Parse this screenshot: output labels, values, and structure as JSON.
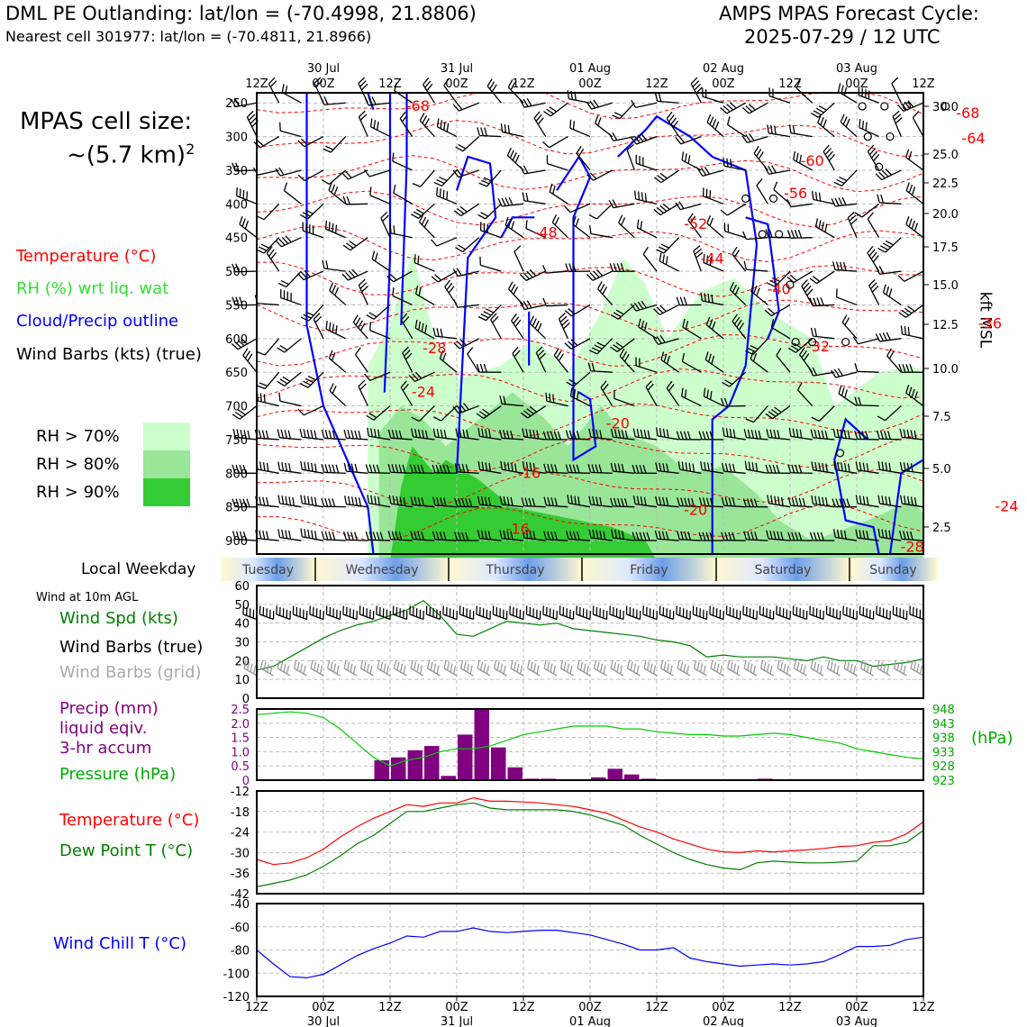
{
  "header": {
    "title_left": "DML PE Outlanding: lat/lon = (-70.4998, 21.8806)",
    "subtitle_left": "Nearest cell 301977: lat/lon = (-70.4811, 21.8966)",
    "title_right_1": "AMPS MPAS Forecast Cycle:",
    "title_right_2": "2025-07-29 / 12 UTC"
  },
  "side_text": {
    "cell_size_1": "MPAS cell size:",
    "cell_size_2": "~(5.7 km)",
    "cell_size_sup": "2",
    "legend_temperature": "Temperature (°C)",
    "legend_rh": "RH (%) wrt liq. wat",
    "legend_cloud": "Cloud/Precip outline",
    "legend_barbs": "Wind Barbs (kts) (true)",
    "rh70": "RH > 70%",
    "rh80": "RH > 80%",
    "rh90": "RH > 90%",
    "rh_colors": [
      "#ccffcc",
      "#99e699",
      "#33cc33"
    ],
    "local_weekday": "Local Weekday",
    "wind_10m": "Wind at 10m AGL",
    "wind_spd": "Wind Spd (kts)",
    "wind_barbs_true": "Wind Barbs (true)",
    "wind_barbs_grid": "Wind Barbs (grid)",
    "precip_1": "Precip (mm)",
    "precip_2": "liquid eqiv.",
    "precip_3": "3-hr accum",
    "pressure": "Pressure (hPa)",
    "hpa_unit": "(hPa)",
    "temperature": "Temperature (°C)",
    "dewpoint": "Dew Point T (°C)",
    "windchill": "Wind Chill T (°C)",
    "kft_msl": "kft MSL"
  },
  "time_axis": {
    "ticks_top": [
      "12Z",
      "00Z",
      "12Z",
      "00Z",
      "12Z",
      "00Z",
      "12Z",
      "00Z",
      "12Z",
      "00Z",
      "12Z"
    ],
    "dates": [
      "30 Jul",
      "31 Jul",
      "01 Aug",
      "02 Aug",
      "03 Aug"
    ],
    "ticks_bottom": [
      "12Z",
      "00Z",
      "12Z",
      "00Z",
      "12Z",
      "00Z",
      "12Z",
      "00Z",
      "12Z",
      "00Z",
      "12Z"
    ]
  },
  "weekdays": [
    "Tuesday",
    "Wednesday",
    "Thursday",
    "Friday",
    "Saturday",
    "Sunday"
  ],
  "chart_data": [
    {
      "type": "heatmap",
      "name": "time-height cross section",
      "pressure_ticks": [
        "250",
        "300",
        "350",
        "400",
        "450",
        "500",
        "550",
        "600",
        "650",
        "700",
        "750",
        "800",
        "850",
        "900"
      ],
      "height_ticks_kft": [
        "30.0",
        "25.0",
        "22.5",
        "20.0",
        "17.5",
        "15.0",
        "12.5",
        "10.0",
        "7.5",
        "5.0",
        "2.5"
      ],
      "temperature_labels": [
        {
          "text": "-68",
          "t": 29,
          "p": 255
        },
        {
          "text": "-68",
          "t": 128,
          "p": 266
        },
        {
          "text": "-64",
          "t": 129,
          "p": 303
        },
        {
          "text": "-60",
          "t": 100,
          "p": 337
        },
        {
          "text": "-56",
          "t": 97,
          "p": 385
        },
        {
          "text": "-52",
          "t": 79,
          "p": 430
        },
        {
          "text": "-48",
          "t": 52,
          "p": 443
        },
        {
          "text": "-44",
          "t": 82,
          "p": 482
        },
        {
          "text": "-40",
          "t": 94,
          "p": 527
        },
        {
          "text": "-36",
          "t": 132,
          "p": 578
        },
        {
          "text": "-32",
          "t": 101,
          "p": 612
        },
        {
          "text": "-28",
          "t": 32,
          "p": 615
        },
        {
          "text": "-24",
          "t": 30,
          "p": 680
        },
        {
          "text": "-20",
          "t": 65,
          "p": 727
        },
        {
          "text": "-16",
          "t": 49,
          "p": 800
        },
        {
          "text": "-20",
          "t": 79,
          "p": 855
        },
        {
          "text": "-16",
          "t": 47,
          "p": 883
        },
        {
          "text": "-24",
          "t": 135,
          "p": 850
        },
        {
          "text": "-28",
          "t": 118,
          "p": 910
        }
      ]
    },
    {
      "type": "line",
      "name": "wind speed 10m",
      "ylabel": "",
      "ylim": [
        0,
        60
      ],
      "yticks": [
        "60",
        "50",
        "40",
        "30",
        "20",
        "10",
        "0"
      ],
      "x_hours": [
        0,
        3,
        6,
        9,
        12,
        15,
        18,
        21,
        24,
        27,
        30,
        33,
        36,
        39,
        42,
        45,
        48,
        51,
        54,
        57,
        60,
        63,
        66,
        69,
        72,
        75,
        78,
        81,
        84,
        87,
        90,
        93,
        96,
        99,
        102,
        105,
        108,
        111,
        114,
        117,
        120
      ],
      "series": [
        {
          "color": "#008000",
          "values": [
            15,
            17,
            22,
            27,
            32,
            36,
            39,
            41,
            44,
            47,
            52,
            44,
            34,
            33,
            37,
            41,
            40,
            39,
            40,
            37,
            36,
            35,
            34,
            33,
            31,
            30,
            28,
            22,
            23,
            22,
            22,
            22,
            21,
            20,
            22,
            20,
            20,
            17,
            18,
            19,
            21
          ]
        }
      ]
    },
    {
      "type": "bar",
      "name": "precip and pressure",
      "ylim": [
        0,
        2.5
      ],
      "yticks": [
        "2.5",
        "2.0",
        "1.5",
        "1.0",
        "0.5",
        "0"
      ],
      "pressure_ticks": [
        "948",
        "943",
        "938",
        "933",
        "928",
        "923"
      ],
      "pressure_lim": [
        923,
        948
      ],
      "bar_hours": [
        21,
        24,
        27,
        30,
        33,
        36,
        39,
        42,
        45,
        48,
        51,
        54,
        57,
        60,
        63,
        66,
        69,
        72,
        75,
        78,
        81,
        84,
        87,
        90,
        93,
        96,
        99,
        102,
        105,
        108,
        111,
        114,
        117
      ],
      "bar_values": [
        0.7,
        0.8,
        1.05,
        1.2,
        0.15,
        1.6,
        2.5,
        1.15,
        0.45,
        0.05,
        0.05,
        0,
        0,
        0.1,
        0.4,
        0.2,
        0.05,
        0,
        0,
        0,
        0,
        0,
        0,
        0.05,
        0,
        0,
        0,
        0,
        0,
        0,
        0,
        0,
        0
      ],
      "series": [
        {
          "color": "#00cc00",
          "values": [
            946,
            946.5,
            947,
            946.5,
            945,
            941,
            936,
            931,
            928,
            930,
            931,
            933,
            934,
            934,
            935,
            937,
            939,
            940,
            941,
            942,
            942,
            942,
            941,
            941,
            940,
            939.5,
            939,
            939,
            938.5,
            938.5,
            939,
            939.5,
            939,
            938,
            937,
            936,
            934,
            933,
            932,
            931,
            930.5
          ]
        }
      ]
    },
    {
      "type": "line",
      "name": "temperature dew point",
      "ylim": [
        -42,
        -12
      ],
      "yticks": [
        "-12",
        "-18",
        "-24",
        "-30",
        "-36",
        "-42"
      ],
      "series": [
        {
          "color": "#ff0000",
          "values": [
            -32,
            -33.5,
            -33,
            -31.5,
            -29,
            -25.5,
            -22.5,
            -20,
            -18,
            -16,
            -16.5,
            -15.5,
            -15.5,
            -14,
            -15,
            -15,
            -15.2,
            -15.5,
            -16,
            -16.5,
            -17.5,
            -18.5,
            -20.5,
            -22.5,
            -24,
            -26,
            -27.5,
            -29,
            -29.8,
            -30,
            -29.5,
            -29.8,
            -29.5,
            -29.2,
            -28.8,
            -28.2,
            -28,
            -27,
            -26.5,
            -24.5,
            -21
          ]
        },
        {
          "color": "#008000",
          "values": [
            -40,
            -39,
            -38,
            -36.5,
            -34,
            -31,
            -27.5,
            -25,
            -21.5,
            -18,
            -18,
            -17,
            -16,
            -15.5,
            -17,
            -17.5,
            -17.5,
            -17.5,
            -17.5,
            -18,
            -19,
            -20.5,
            -22,
            -25,
            -27.5,
            -30,
            -32,
            -33.5,
            -34.5,
            -35,
            -33,
            -32.5,
            -32.8,
            -33,
            -33,
            -32.8,
            -32.5,
            -28,
            -28,
            -27,
            -23.5
          ]
        }
      ]
    },
    {
      "type": "line",
      "name": "wind chill",
      "ylim": [
        -120,
        -40
      ],
      "yticks": [
        "-40",
        "-60",
        "-80",
        "-100",
        "-120"
      ],
      "series": [
        {
          "color": "#0000ff",
          "values": [
            -80,
            -92,
            -103,
            -104,
            -101,
            -93,
            -85,
            -79,
            -74,
            -68,
            -69,
            -64,
            -64,
            -61,
            -64,
            -65,
            -64,
            -63,
            -63,
            -65,
            -67,
            -71,
            -75,
            -80,
            -80,
            -78,
            -87,
            -90,
            -92,
            -94,
            -93,
            -92,
            -93,
            -92,
            -90,
            -84,
            -77,
            -77,
            -76,
            -71,
            -69
          ]
        }
      ]
    }
  ]
}
